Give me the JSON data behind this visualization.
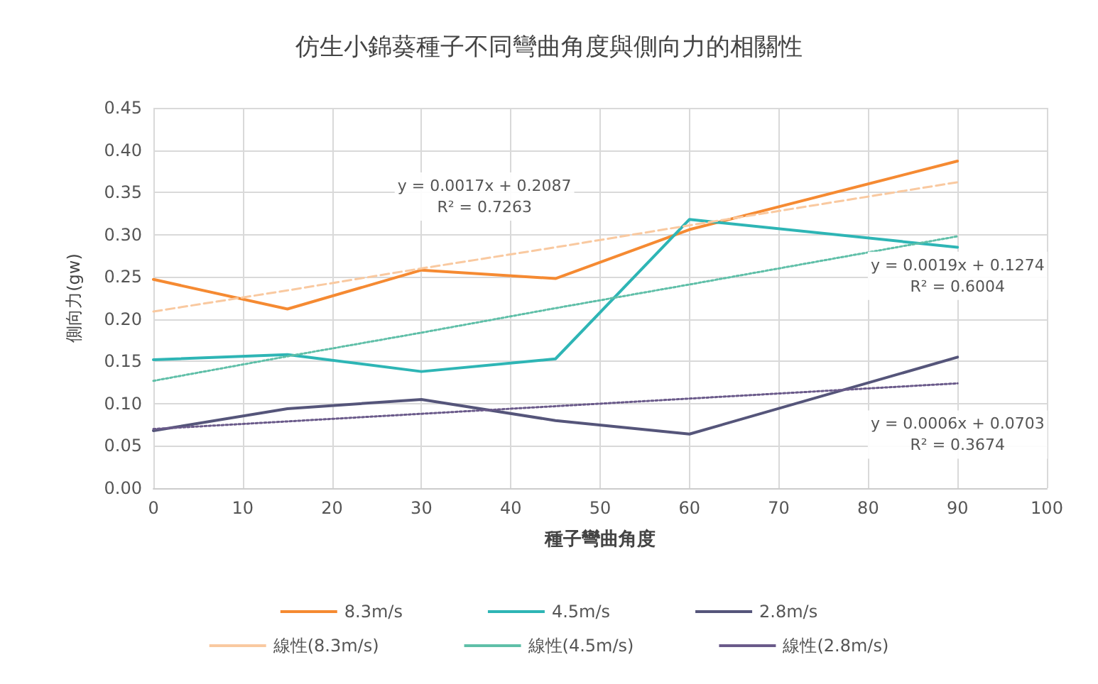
{
  "chart_data": {
    "type": "line",
    "title": "仿生小錦葵種子不同彎曲角度與側向力的相關性",
    "xlabel": "種子彎曲角度",
    "ylabel": "側向力(gw)",
    "x": [
      0,
      15,
      30,
      45,
      60,
      90
    ],
    "series": [
      {
        "name": "8.3m/s",
        "color": "#f58a32",
        "values": [
          0.247,
          0.212,
          0.258,
          0.248,
          0.306,
          0.387
        ]
      },
      {
        "name": "4.5m/s",
        "color": "#2eb5b5",
        "values": [
          0.152,
          0.158,
          0.138,
          0.153,
          0.318,
          0.285
        ]
      },
      {
        "name": "2.8m/s",
        "color": "#55557a",
        "values": [
          0.068,
          0.094,
          0.105,
          0.08,
          0.064,
          0.155
        ]
      },
      {
        "name": "線性(8.3m/s)",
        "type": "line",
        "color": "#f9c9a0",
        "line_style": "dashed",
        "values": [
          0.209,
          0.234,
          0.26,
          0.285,
          0.311,
          0.362
        ]
      },
      {
        "name": "線性(4.5m/s)",
        "type": "line",
        "color": "#5fbfa8",
        "line_style": "dotted",
        "values": [
          0.127,
          0.156,
          0.184,
          0.213,
          0.241,
          0.298
        ]
      },
      {
        "name": "線性(2.8m/s)",
        "type": "line",
        "color": "#6a5a8a",
        "line_style": "dotted",
        "values": [
          0.07,
          0.079,
          0.088,
          0.097,
          0.106,
          0.124
        ]
      }
    ],
    "annotations": [
      "y = 0.0017x + 0.2087\nR² = 0.7263",
      "y = 0.0019x + 0.1274\nR² = 0.6004",
      "y = 0.0006x + 0.0703\nR² = 0.3674"
    ],
    "xlim": [
      0,
      100
    ],
    "xticks": [
      0,
      10,
      20,
      30,
      40,
      50,
      60,
      70,
      80,
      90,
      100
    ],
    "ylim": [
      0,
      0.45
    ],
    "yticks": [
      {
        "value": 0,
        "label": "0.00"
      },
      {
        "value": 0.05,
        "label": "0.05"
      },
      {
        "value": 0.1,
        "label": "0.10"
      },
      {
        "value": 0.15,
        "label": "0.15"
      },
      {
        "value": 0.2,
        "label": "0.20"
      },
      {
        "value": 0.25,
        "label": "0.25"
      },
      {
        "value": 0.3,
        "label": "0.30"
      },
      {
        "value": 0.35,
        "label": "0.35"
      },
      {
        "value": 0.4,
        "label": "0.40"
      },
      {
        "value": 0.45,
        "label": "0.45"
      }
    ],
    "grid": true,
    "legend": "bottom",
    "marker": "none",
    "line_style": "solid"
  }
}
